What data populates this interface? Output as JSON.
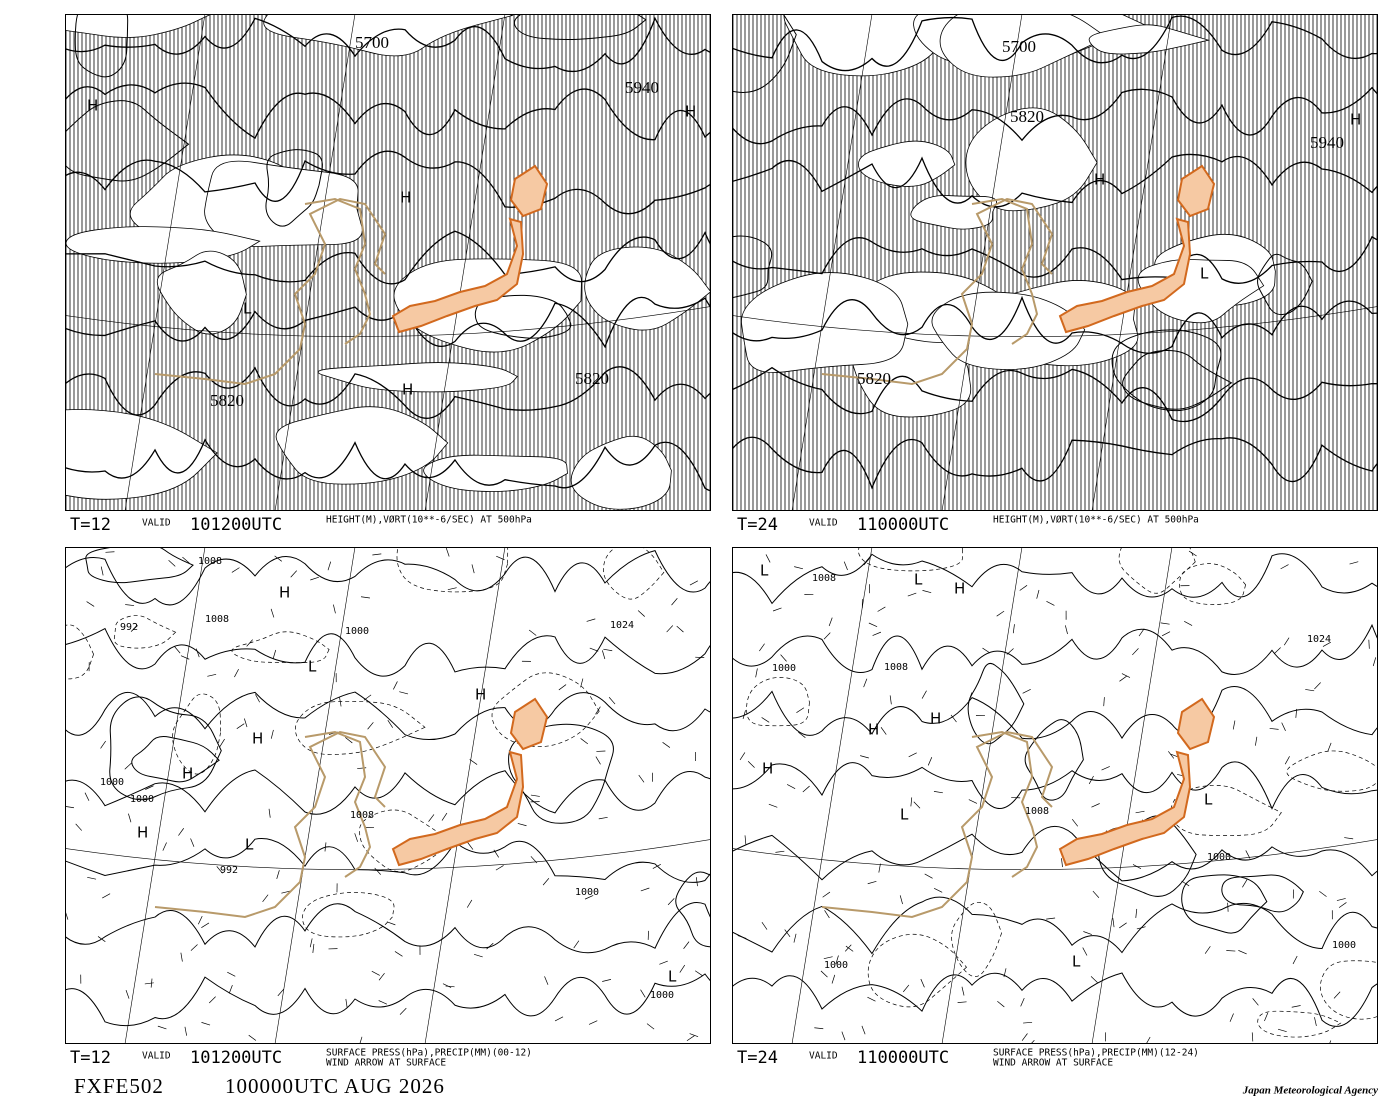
{
  "footer": {
    "code": "FXFE502",
    "issued": "100000UTC AUG 2026",
    "agency": "Japan Meteorological Agency"
  },
  "panels": [
    {
      "step": "T=12",
      "valid_label": "VALID",
      "valid_time": "101200UTC",
      "description": [
        "HEIGHT(M),VØRT(10**-6/SEC) AT 500hPa"
      ],
      "labels": [
        "5700",
        "5820",
        "5820",
        "5940",
        "H",
        "H",
        "H",
        "H",
        "L"
      ]
    },
    {
      "step": "T=24",
      "valid_label": "VALID",
      "valid_time": "110000UTC",
      "description": [
        "HEIGHT(M),VØRT(10**-6/SEC) AT 500hPa"
      ],
      "labels": [
        "5700",
        "5820",
        "5940",
        "5820",
        "H",
        "H",
        "L"
      ]
    },
    {
      "step": "T=12",
      "valid_label": "VALID",
      "valid_time": "101200UTC",
      "description": [
        "SURFACE PRESS(hPa),PRECIP(MM)(00-12)",
        "WIND ARROW AT SURFACE"
      ],
      "labels": [
        "1008",
        "1008",
        "1000",
        "1024",
        "992",
        "1000",
        "1000",
        "1008",
        "992",
        "1000",
        "1000",
        "H",
        "H",
        "H",
        "H",
        "H",
        "L",
        "L",
        "L"
      ]
    },
    {
      "step": "T=24",
      "valid_label": "VALID",
      "valid_time": "110000UTC",
      "description": [
        "SURFACE PRESS(hPa),PRECIP(MM)(12-24)",
        "WIND ARROW AT SURFACE"
      ],
      "labels": [
        "1008",
        "1008",
        "1008",
        "1000",
        "1024",
        "1000",
        "1000",
        "1000",
        "H",
        "H",
        "H",
        "H",
        "L",
        "L",
        "L",
        "L",
        "L"
      ]
    }
  ]
}
